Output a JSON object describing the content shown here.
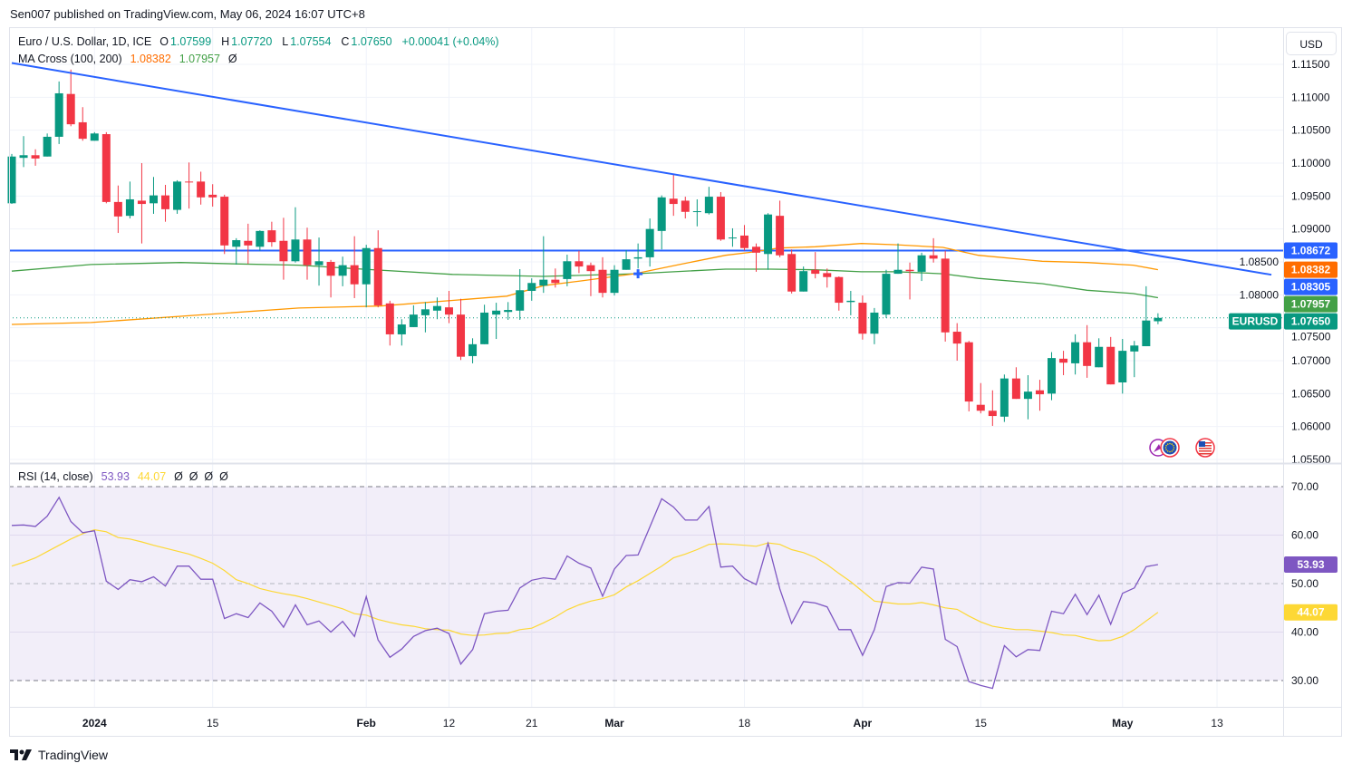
{
  "header": {
    "published": "Sen007 published on TradingView.com, May 06, 2024 16:07 UTC+8"
  },
  "legend": {
    "symbol": "Euro / U.S. Dollar, 1D, ICE",
    "ohlc": [
      {
        "label": "O",
        "value": "1.07599"
      },
      {
        "label": "H",
        "value": "1.07720"
      },
      {
        "label": "L",
        "value": "1.07554"
      },
      {
        "label": "C",
        "value": "1.07650"
      }
    ],
    "change": "+0.00041 (+0.04%)",
    "ma_title": "MA Cross (100, 200)",
    "ma100_value": "1.08382",
    "ma200_value": "1.07957",
    "ma_extra": "Ø"
  },
  "rsi_legend": {
    "title": "RSI (14, close)",
    "rsi_value": "53.93",
    "ma_value": "44.07",
    "extra": "Ø  Ø  Ø  Ø"
  },
  "currency_button": "USD",
  "footer": {
    "brand": "TradingView"
  },
  "colors": {
    "up": "#089981",
    "down": "#f23645",
    "trend": "#2962ff",
    "ma100": "#ff9800",
    "ma200": "#43a047",
    "rsi": "#7e57c2",
    "rsi_ma": "#fdd835"
  },
  "price_axis": {
    "ticks": [
      "1.11500",
      "1.11000",
      "1.10500",
      "1.10000",
      "1.09500",
      "1.09000",
      "1.08500",
      "1.08000",
      "1.07500",
      "1.07000",
      "1.06500",
      "1.06000",
      "1.05500"
    ],
    "badges": [
      {
        "value": "1.08672",
        "color": "#2962ff"
      },
      {
        "value": "1.08382",
        "color": "#ff6d00"
      },
      {
        "value": "1.08305",
        "color": "#2962ff"
      },
      {
        "value": "1.07957",
        "color": "#43a047"
      },
      {
        "value": "1.07650",
        "color": "#089981",
        "label": "EURUSD"
      }
    ]
  },
  "rsi_axis": {
    "ticks": [
      "70.00",
      "60.00",
      "50.00",
      "40.00",
      "30.00"
    ],
    "badges": [
      {
        "value": "53.93",
        "color": "#7e57c2",
        "text_color": "#ffffff"
      },
      {
        "value": "44.07",
        "color": "#fdd835",
        "text_color": "#131722"
      }
    ]
  },
  "time_axis": {
    "ticks": [
      {
        "label": "2024",
        "index": 8,
        "bold": true
      },
      {
        "label": "15",
        "index": 18
      },
      {
        "label": "Feb",
        "index": 31,
        "bold": true
      },
      {
        "label": "12",
        "index": 38
      },
      {
        "label": "21",
        "index": 45
      },
      {
        "label": "Mar",
        "index": 52,
        "bold": true
      },
      {
        "label": "18",
        "index": 63
      },
      {
        "label": "Apr",
        "index": 73,
        "bold": true
      },
      {
        "label": "15",
        "index": 83
      },
      {
        "label": "May",
        "index": 95,
        "bold": true
      },
      {
        "label": "13",
        "index": 103
      }
    ]
  },
  "event_icons": [
    "events-icon",
    "eu-flag-icon",
    "us-flag-icon"
  ],
  "chart_data": {
    "type": "candlestick",
    "title": "Euro / U.S. Dollar, 1D, ICE",
    "x_start": "2023-12-21",
    "x_end": "2024-05-06",
    "ylim": [
      1.055,
      1.1165
    ],
    "candles_ohlc": [
      [
        1.0939,
        1.1014,
        1.0938,
        1.101
      ],
      [
        1.1008,
        1.1041,
        1.0994,
        1.1012
      ],
      [
        1.1012,
        1.1021,
        1.0996,
        1.1007
      ],
      [
        1.101,
        1.1045,
        1.101,
        1.104
      ],
      [
        1.104,
        1.1124,
        1.1029,
        1.1106
      ],
      [
        1.1105,
        1.1142,
        1.1056,
        1.1059
      ],
      [
        1.1062,
        1.1085,
        1.1034,
        1.1037
      ],
      [
        1.1034,
        1.1047,
        1.1034,
        1.1045
      ],
      [
        1.1044,
        1.1047,
        1.0939,
        1.0941
      ],
      [
        1.0941,
        1.0966,
        1.0894,
        1.0919
      ],
      [
        1.092,
        1.0972,
        1.0916,
        1.0945
      ],
      [
        1.0943,
        1.1,
        1.0878,
        1.0938
      ],
      [
        1.0939,
        1.0979,
        1.0923,
        1.0951
      ],
      [
        1.0951,
        1.0967,
        1.0911,
        1.093
      ],
      [
        1.0929,
        1.0974,
        1.0923,
        1.0972
      ],
      [
        1.0972,
        1.1001,
        1.0931,
        1.0971
      ],
      [
        1.0972,
        1.0987,
        1.0937,
        1.0948
      ],
      [
        1.0952,
        1.0968,
        1.0934,
        1.0948
      ],
      [
        1.0949,
        1.0952,
        1.0862,
        1.0875
      ],
      [
        1.0873,
        1.0886,
        1.0846,
        1.0883
      ],
      [
        1.0882,
        1.0908,
        1.0847,
        1.0875
      ],
      [
        1.0873,
        1.0898,
        1.0867,
        1.0897
      ],
      [
        1.0898,
        1.0911,
        1.0873,
        1.088
      ],
      [
        1.0882,
        1.0917,
        1.0823,
        1.0851
      ],
      [
        1.0851,
        1.0933,
        1.0849,
        1.0884
      ],
      [
        1.0884,
        1.0902,
        1.0823,
        1.0845
      ],
      [
        1.0845,
        1.0887,
        1.0814,
        1.0851
      ],
      [
        1.085,
        1.0853,
        1.0796,
        1.0829
      ],
      [
        1.0829,
        1.0858,
        1.0813,
        1.0845
      ],
      [
        1.0845,
        1.0889,
        1.0795,
        1.0816
      ],
      [
        1.0816,
        1.0876,
        1.0781,
        1.0871
      ],
      [
        1.0871,
        1.0898,
        1.0781,
        1.0784
      ],
      [
        1.0787,
        1.0791,
        1.0723,
        1.074
      ],
      [
        1.074,
        1.0763,
        1.0723,
        1.0755
      ],
      [
        1.0751,
        1.0784,
        1.0751,
        1.077
      ],
      [
        1.0769,
        1.0789,
        1.0743,
        1.0778
      ],
      [
        1.0776,
        1.0796,
        1.0763,
        1.0783
      ],
      [
        1.0781,
        1.0806,
        1.0757,
        1.077
      ],
      [
        1.077,
        1.0794,
        1.0701,
        1.0706
      ],
      [
        1.0707,
        1.0734,
        1.0696,
        1.0725
      ],
      [
        1.0725,
        1.0785,
        1.0725,
        1.0773
      ],
      [
        1.077,
        1.0788,
        1.0733,
        1.0776
      ],
      [
        1.0774,
        1.0789,
        1.0762,
        1.0777
      ],
      [
        1.0776,
        1.0839,
        1.0762,
        1.0807
      ],
      [
        1.0806,
        1.0825,
        1.0791,
        1.0818
      ],
      [
        1.0814,
        1.0889,
        1.0803,
        1.0823
      ],
      [
        1.0823,
        1.084,
        1.0811,
        1.0818
      ],
      [
        1.0824,
        1.0861,
        1.0813,
        1.0851
      ],
      [
        1.0851,
        1.0867,
        1.0833,
        1.0843
      ],
      [
        1.0845,
        1.0849,
        1.0798,
        1.0836
      ],
      [
        1.0838,
        1.0857,
        1.0796,
        1.0803
      ],
      [
        1.0803,
        1.0845,
        1.0799,
        1.0838
      ],
      [
        1.0838,
        1.0868,
        1.0838,
        1.0854
      ],
      [
        1.0855,
        1.0878,
        1.084,
        1.0857
      ],
      [
        1.0857,
        1.0916,
        1.0843,
        1.09
      ],
      [
        1.0897,
        1.0951,
        1.0869,
        1.0948
      ],
      [
        1.0946,
        1.0984,
        1.092,
        1.0938
      ],
      [
        1.0943,
        1.0949,
        1.0916,
        1.0926
      ],
      [
        1.0926,
        1.0945,
        1.0904,
        1.0927
      ],
      [
        1.0924,
        1.0964,
        1.0922,
        1.0949
      ],
      [
        1.0949,
        1.0956,
        1.0882,
        1.0884
      ],
      [
        1.0886,
        1.0901,
        1.0873,
        1.0887
      ],
      [
        1.089,
        1.0906,
        1.0867,
        1.0871
      ],
      [
        1.0873,
        1.0878,
        1.0835,
        1.0864
      ],
      [
        1.0862,
        1.0924,
        1.0838,
        1.0922
      ],
      [
        1.092,
        1.0943,
        1.0857,
        1.086
      ],
      [
        1.0862,
        1.0869,
        1.0802,
        1.0805
      ],
      [
        1.0805,
        1.0843,
        1.0805,
        1.0836
      ],
      [
        1.0838,
        1.0865,
        1.0825,
        1.0832
      ],
      [
        1.0833,
        1.084,
        1.0811,
        1.0827
      ],
      [
        1.0827,
        1.0828,
        1.0776,
        1.0788
      ],
      [
        1.0789,
        1.0806,
        1.0769,
        1.0791
      ],
      [
        1.0788,
        1.0799,
        1.0732,
        1.0741
      ],
      [
        1.0741,
        1.078,
        1.0725,
        1.0773
      ],
      [
        1.077,
        1.0838,
        1.0765,
        1.0832
      ],
      [
        1.0832,
        1.0878,
        1.0832,
        1.0838
      ],
      [
        1.0838,
        1.0849,
        1.0793,
        1.0836
      ],
      [
        1.0835,
        1.0864,
        1.0821,
        1.086
      ],
      [
        1.086,
        1.0886,
        1.0849,
        1.0855
      ],
      [
        1.0855,
        1.0867,
        1.0729,
        1.0743
      ],
      [
        1.0744,
        1.0757,
        1.07,
        1.0726
      ],
      [
        1.0728,
        1.073,
        1.0623,
        1.0638
      ],
      [
        1.0633,
        1.0666,
        1.062,
        1.0624
      ],
      [
        1.0624,
        1.0655,
        1.0601,
        1.0616
      ],
      [
        1.0615,
        1.0679,
        1.0607,
        1.0673
      ],
      [
        1.0673,
        1.069,
        1.0642,
        1.0642
      ],
      [
        1.0642,
        1.0678,
        1.0611,
        1.0653
      ],
      [
        1.0655,
        1.0671,
        1.0624,
        1.0649
      ],
      [
        1.065,
        1.0713,
        1.064,
        1.0704
      ],
      [
        1.0703,
        1.0715,
        1.0678,
        1.0697
      ],
      [
        1.0696,
        1.074,
        1.0679,
        1.0728
      ],
      [
        1.0728,
        1.0754,
        1.0674,
        1.0692
      ],
      [
        1.069,
        1.0734,
        1.069,
        1.0721
      ],
      [
        1.0721,
        1.0736,
        1.0664,
        1.0664
      ],
      [
        1.0667,
        1.0733,
        1.065,
        1.0715
      ],
      [
        1.0714,
        1.073,
        1.0675,
        1.0723
      ],
      [
        1.0722,
        1.0813,
        1.0722,
        1.0761
      ],
      [
        1.07599,
        1.0772,
        1.07554,
        1.0765
      ]
    ],
    "ma100": [
      [
        1,
        1.0755
      ],
      [
        7.7,
        1.0758
      ],
      [
        25.3,
        1.078
      ],
      [
        32.2,
        1.0783
      ],
      [
        42.9,
        1.0798
      ],
      [
        46,
        1.0814
      ],
      [
        49.1,
        1.0821
      ],
      [
        53.7,
        1.0832
      ],
      [
        57.5,
        1.0846
      ],
      [
        61.4,
        1.086
      ],
      [
        63.7,
        1.0865
      ],
      [
        65.9,
        1.0871
      ],
      [
        69,
        1.0873
      ],
      [
        72.9,
        1.0878
      ],
      [
        75.9,
        1.0876
      ],
      [
        79.8,
        1.0872
      ],
      [
        82.8,
        1.086
      ],
      [
        88.2,
        1.0851
      ],
      [
        92,
        1.0849
      ],
      [
        95.9,
        1.0845
      ],
      [
        98,
        1.08382
      ]
    ],
    "ma200": [
      [
        1,
        1.0836
      ],
      [
        7.7,
        1.0846
      ],
      [
        15.3,
        1.0849
      ],
      [
        19.9,
        1.0847
      ],
      [
        25.3,
        1.0845
      ],
      [
        30.7,
        1.0839
      ],
      [
        38.3,
        1.0831
      ],
      [
        46,
        1.0828
      ],
      [
        53.7,
        1.0832
      ],
      [
        61.4,
        1.0839
      ],
      [
        65.2,
        1.0839
      ],
      [
        69,
        1.0838
      ],
      [
        72.9,
        1.0835
      ],
      [
        75.9,
        1.0835
      ],
      [
        79.8,
        1.0832
      ],
      [
        82.8,
        1.0825
      ],
      [
        88.2,
        1.0817
      ],
      [
        92,
        1.0807
      ],
      [
        95.9,
        1.0802
      ],
      [
        98,
        1.07957
      ]
    ],
    "trendline": [
      [
        1,
        1.1152
      ],
      [
        107.6,
        1.08305
      ]
    ],
    "horizontal_line": 1.08672,
    "last_price": 1.0765,
    "marker": [
      54,
      1.0832
    ],
    "rsi": {
      "ylim": [
        25,
        75
      ],
      "bands": [
        30,
        50,
        70
      ],
      "values": [
        62.0,
        62.1,
        61.8,
        63.9,
        67.8,
        62.8,
        60.5,
        60.9,
        50.5,
        48.8,
        50.8,
        50.4,
        51.4,
        49.5,
        53.6,
        53.6,
        50.9,
        50.9,
        42.8,
        43.8,
        43.0,
        46.0,
        44.3,
        41.0,
        45.6,
        41.5,
        42.3,
        40.0,
        42.2,
        39.1,
        47.3,
        38.4,
        34.8,
        36.5,
        39.1,
        40.3,
        40.8,
        39.7,
        33.4,
        36.4,
        43.8,
        44.3,
        44.5,
        49.1,
        50.7,
        51.2,
        50.9,
        55.7,
        54.2,
        53.2,
        47.4,
        53.0,
        55.8,
        55.9,
        61.7,
        67.5,
        65.8,
        63.1,
        63.1,
        65.9,
        53.4,
        53.6,
        51.0,
        49.8,
        58.3,
        48.9,
        41.8,
        46.3,
        46.0,
        45.2,
        40.5,
        40.5,
        35.2,
        40.5,
        49.4,
        50.2,
        50.1,
        53.4,
        53.0,
        38.5,
        37.0,
        29.8,
        29.0,
        28.4,
        37.2,
        34.9,
        36.4,
        36.2,
        44.3,
        43.8,
        47.8,
        43.6,
        47.6,
        41.6,
        48.0,
        49.1,
        53.5,
        53.93
      ],
      "ma": [
        53.6,
        54.4,
        55.3,
        56.6,
        57.9,
        59.2,
        60.3,
        61.1,
        60.7,
        59.5,
        59.2,
        58.6,
        57.9,
        57.3,
        56.7,
        56.1,
        55.2,
        54.2,
        52.7,
        50.8,
        50.0,
        49.0,
        48.4,
        47.9,
        47.5,
        46.9,
        46.2,
        45.5,
        44.8,
        43.8,
        43.5,
        42.6,
        42.0,
        41.5,
        41.2,
        40.7,
        40.5,
        40.4,
        39.6,
        39.3,
        39.4,
        39.7,
        39.8,
        40.5,
        40.8,
        41.9,
        43.1,
        44.6,
        45.6,
        46.4,
        46.9,
        47.7,
        49.3,
        50.6,
        52.1,
        53.6,
        55.3,
        56.1,
        57.0,
        58.1,
        58.2,
        58.1,
        57.9,
        57.7,
        58.4,
        58.1,
        57.0,
        56.4,
        55.4,
        53.9,
        52.1,
        50.4,
        48.4,
        46.4,
        46.1,
        45.8,
        45.8,
        46.1,
        45.6,
        45.0,
        44.7,
        43.3,
        42.1,
        41.2,
        40.8,
        40.5,
        40.5,
        40.2,
        39.9,
        39.4,
        39.3,
        38.7,
        38.2,
        38.3,
        39.1,
        40.5,
        42.3,
        44.07
      ]
    }
  }
}
